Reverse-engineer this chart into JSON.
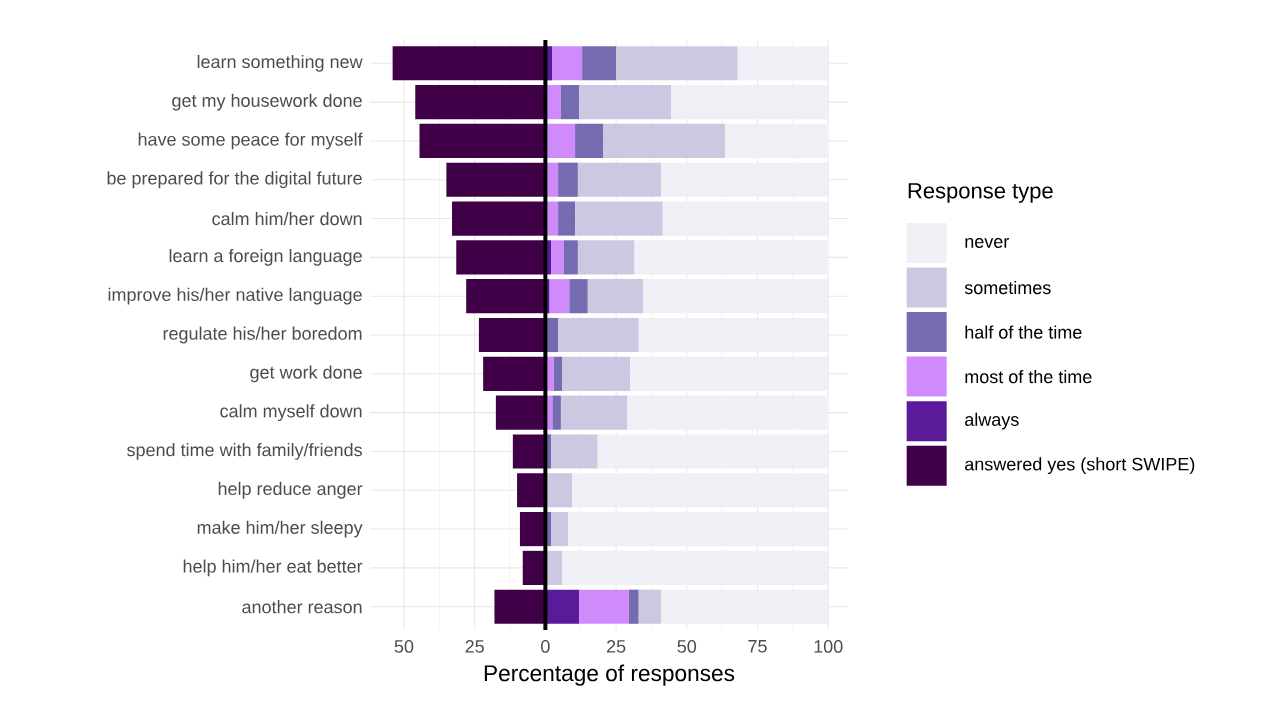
{
  "chart_data": {
    "type": "bar",
    "orientation": "horizontal",
    "stacked": true,
    "xlabel": "Percentage of responses",
    "legend_title": "Response type",
    "legend": "right",
    "grid": true,
    "categories": [
      "learn something new",
      "get my housework done",
      "have some peace for myself",
      "be prepared for the digital future",
      "calm him/her down",
      "learn a foreign language",
      "improve his/her native language",
      "regulate his/her boredom",
      "get work done",
      "calm myself down",
      "spend time with family/friends",
      "help reduce anger",
      "make him/her sleepy",
      "help him/her eat better",
      "another reason"
    ],
    "series": [
      {
        "name": "answered yes (short SWIPE)",
        "color": "#3f0047",
        "values": [
          -54,
          -46,
          -44.5,
          -35,
          -33,
          -31.5,
          -28,
          -23.5,
          -22,
          -17.5,
          -11.5,
          -10,
          -9,
          -8,
          -18
        ]
      },
      {
        "name": "always",
        "color": "#5a1a99",
        "values": [
          2.5,
          null,
          null,
          null,
          null,
          2,
          1.5,
          null,
          null,
          null,
          null,
          null,
          null,
          null,
          12
        ]
      },
      {
        "name": "most of the time",
        "color": "#cf8bfc",
        "values": [
          10.5,
          5.5,
          10.5,
          4.5,
          4.5,
          4.5,
          7,
          0,
          3,
          2.5,
          0,
          0,
          0,
          0,
          17.5
        ]
      },
      {
        "name": "half of the time",
        "color": "#756bb1",
        "values": [
          12,
          6.5,
          10,
          7,
          6,
          5,
          6.5,
          4.5,
          3,
          3,
          2,
          0,
          2,
          0,
          3.5
        ]
      },
      {
        "name": "sometimes",
        "color": "#cbc9e2",
        "values": [
          43,
          32.5,
          43,
          29.5,
          31,
          20,
          19.5,
          28.5,
          24,
          23.5,
          16.5,
          9.5,
          6,
          6,
          8
        ]
      },
      {
        "name": "never",
        "color": "#f0eff6",
        "values": [
          32,
          55.5,
          36,
          59,
          58.5,
          68,
          65.5,
          67,
          70,
          70.5,
          81.5,
          90.5,
          92,
          94,
          59
        ]
      }
    ],
    "xlim": [
      -62,
      107
    ],
    "xticks": [
      {
        "value": -50,
        "label": "50"
      },
      {
        "value": -25,
        "label": "25"
      },
      0,
      25,
      50,
      75,
      100
    ],
    "ref_lines": [
      {
        "axis": "x",
        "value": 0,
        "color": "#000000"
      }
    ]
  }
}
